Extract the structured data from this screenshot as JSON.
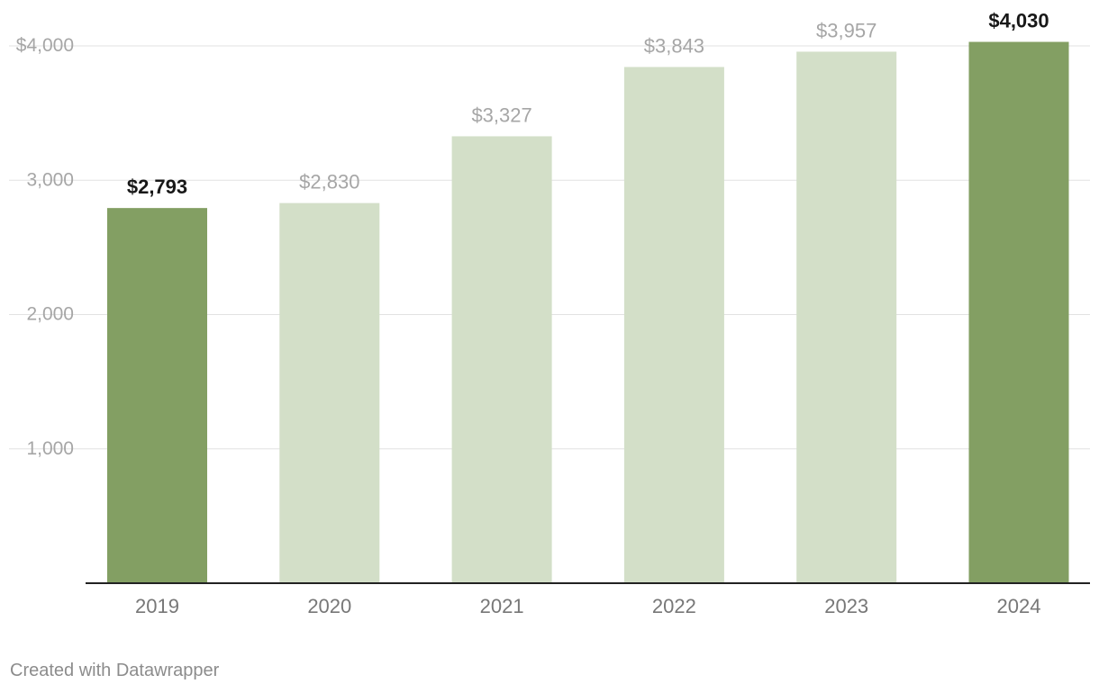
{
  "chart_data": {
    "type": "bar",
    "categories": [
      "2019",
      "2020",
      "2021",
      "2022",
      "2023",
      "2024"
    ],
    "values": [
      2793,
      2830,
      3327,
      3843,
      3957,
      4030
    ],
    "value_labels": [
      "$2,793",
      "$2,830",
      "$3,327",
      "$3,843",
      "$3,957",
      "$4,030"
    ],
    "highlighted": [
      true,
      false,
      false,
      false,
      false,
      true
    ],
    "title": "",
    "xlabel": "",
    "ylabel": "",
    "ylim": [
      0,
      4000
    ],
    "yticks": [
      {
        "value": 1000,
        "label": "1,000"
      },
      {
        "value": 2000,
        "label": "2,000"
      },
      {
        "value": 3000,
        "label": "3,000"
      },
      {
        "value": 4000,
        "label": "$4,000"
      }
    ],
    "grid": true,
    "legend": "none"
  },
  "colors": {
    "highlight_bar": "#839f63",
    "bar": "#d3dfc8",
    "grid": "#e2e2e2",
    "axis": "#222222",
    "tick_text": "#a6a6a6",
    "category_text": "#777777",
    "highlight_label": "#181818",
    "label": "#a6a6a6"
  },
  "footer": {
    "credit": "Created with Datawrapper"
  }
}
